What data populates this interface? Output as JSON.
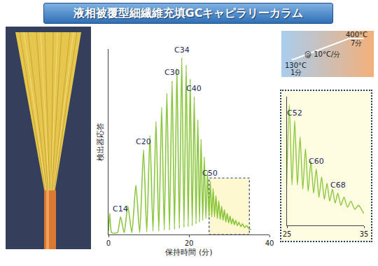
{
  "title": "液相被覆型細繊維充填GCキャピラリーカラム",
  "chart_data": [
    {
      "type": "line",
      "color": "#8cc63f",
      "grid": false,
      "tick_labels": "x",
      "xlabel": "保持時間 (分)",
      "ylabel": "検出器応答",
      "xlim": [
        0,
        40
      ],
      "xticks": [
        0,
        20,
        40
      ],
      "ylim": [
        0,
        105
      ],
      "x": [
        0,
        0.3,
        0.8,
        2.2,
        3.0,
        3.9,
        4.8,
        5.8,
        6.8,
        7.75,
        8.7,
        9.5,
        10.3,
        11.05,
        11.8,
        12.5,
        13.2,
        13.85,
        14.5,
        15.15,
        15.8,
        16.4,
        17.0,
        17.6,
        18.2,
        18.75,
        19.3,
        19.8,
        20.3,
        20.8,
        21.3,
        21.75,
        22.2,
        22.6,
        23.0,
        23.4,
        23.8,
        24.2,
        24.6,
        24.95,
        25.3,
        25.65,
        26.0,
        26.35,
        26.7,
        27.05,
        27.4,
        27.75,
        28.1,
        28.45,
        28.8,
        29.15,
        29.5,
        29.85,
        30.2,
        30.55,
        30.9,
        31.25,
        31.6,
        32.0,
        32.4,
        32.85,
        33.3,
        33.8,
        34.3,
        35.0,
        35.5
      ],
      "values": [
        2,
        12,
        1,
        1,
        10,
        1,
        16,
        1,
        28,
        1,
        48,
        1.5,
        56,
        2,
        64,
        2,
        72,
        2.5,
        80,
        2.5,
        87,
        3,
        94,
        3.5,
        100,
        4,
        96,
        4.5,
        88,
        5,
        78,
        6,
        65,
        7,
        54,
        8,
        44,
        9,
        36,
        10,
        30,
        10,
        26,
        10,
        22,
        9,
        19,
        8.5,
        16,
        8,
        14,
        7,
        12,
        6.5,
        10.5,
        6,
        9,
        5.5,
        8,
        5,
        7,
        4.5,
        6,
        4,
        5,
        3,
        3
      ],
      "annotations": [
        {
          "text": "C14",
          "x": 3.0,
          "y": 10
        },
        {
          "text": "C20",
          "x": 8.7,
          "y": 48
        },
        {
          "text": "C30",
          "x": 15.8,
          "y": 87
        },
        {
          "text": "C34",
          "x": 18.2,
          "y": 100
        },
        {
          "text": "C40",
          "x": 21.3,
          "y": 78
        },
        {
          "text": "C50",
          "x": 25.3,
          "y": 30
        }
      ]
    },
    {
      "type": "line",
      "color": "#8cc63f",
      "grid": false,
      "tick_labels": "x",
      "xlim": [
        25,
        35
      ],
      "xticks": [
        25,
        35
      ],
      "ylim": [
        0,
        32
      ],
      "x": [
        24.95,
        25.3,
        25.65,
        26.0,
        26.35,
        26.7,
        27.05,
        27.4,
        27.75,
        28.1,
        28.45,
        28.8,
        29.15,
        29.5,
        29.85,
        30.2,
        30.55,
        30.9,
        31.25,
        31.6,
        32.0,
        32.4,
        32.85,
        33.3,
        33.8,
        34.3,
        35.0,
        35.5
      ],
      "values": [
        10,
        30,
        10,
        26,
        10,
        22,
        9,
        19,
        8.5,
        16,
        8,
        14,
        7,
        12,
        6.5,
        10.5,
        6,
        9,
        5.5,
        8,
        5,
        7,
        4.5,
        6,
        4,
        5,
        3,
        3
      ],
      "annotations": [
        {
          "text": "C52",
          "x": 26.0,
          "y": 26
        },
        {
          "text": "C60",
          "x": 28.8,
          "y": 14
        },
        {
          "text": "C68",
          "x": 31.6,
          "y": 8
        }
      ]
    },
    {
      "type": "line",
      "color": "#ffffff",
      "grid": false,
      "tick_labels": false,
      "xlim": [
        -5,
        40
      ],
      "ylim": [
        -100,
        500
      ],
      "x": [
        0,
        1,
        28,
        35
      ],
      "values": [
        130,
        130,
        400,
        400
      ],
      "annotations": [
        {
          "text": "400°C",
          "x": 31.5,
          "y": 450
        },
        {
          "text": "7分",
          "x": 31.5,
          "y": 340
        },
        {
          "text": "@ 10°C/分",
          "x": 15,
          "y": 200
        },
        {
          "text": "130°C",
          "x": 2,
          "y": 50
        },
        {
          "text": "1分",
          "x": 2,
          "y": -40
        }
      ]
    }
  ]
}
